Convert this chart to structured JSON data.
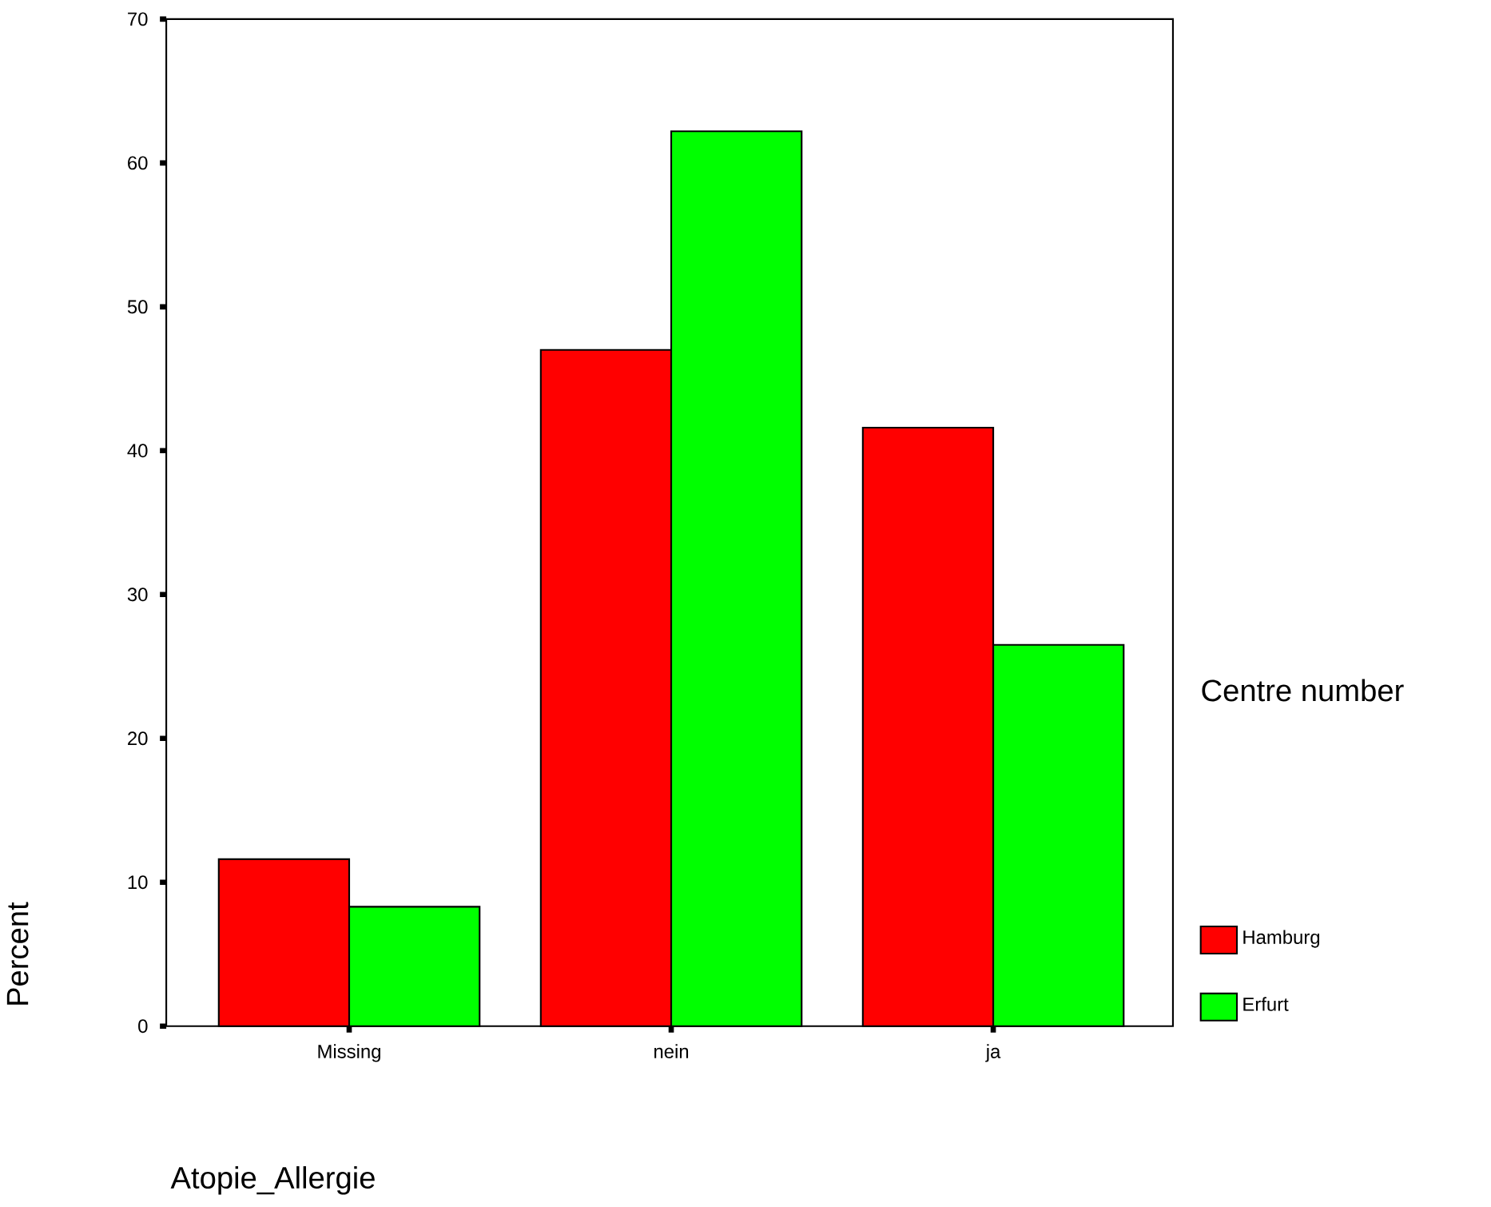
{
  "chart_data": {
    "type": "bar",
    "xlabel": "Atopie_Allergie",
    "ylabel": "Percent",
    "legend_title": "Centre number",
    "categories": [
      "Missing",
      "nein",
      "ja"
    ],
    "series": [
      {
        "name": "Hamburg",
        "color": "#ff0000",
        "values": [
          11.6,
          47.0,
          41.6
        ]
      },
      {
        "name": "Erfurt",
        "color": "#00ff00",
        "values": [
          8.3,
          62.2,
          26.5
        ]
      }
    ],
    "ylim": [
      0,
      70
    ],
    "yticks": [
      0,
      10,
      20,
      30,
      40,
      50,
      60,
      70
    ],
    "grid": false,
    "legend": "right"
  }
}
